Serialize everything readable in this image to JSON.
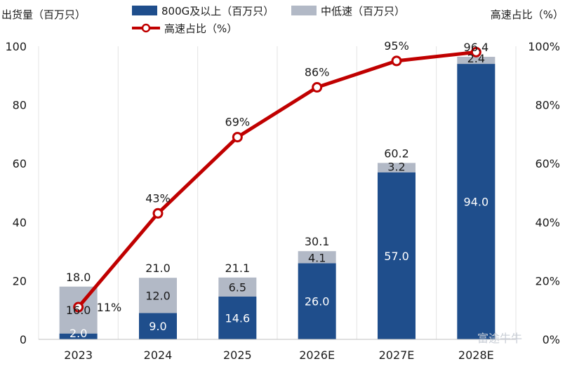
{
  "chart_data": {
    "type": "bar",
    "stacked": true,
    "categories": [
      "2023",
      "2024",
      "2025",
      "2026E",
      "2027E",
      "2028E"
    ],
    "series": [
      {
        "name": "800G及以上（百万只）",
        "type": "bar",
        "axis": "left",
        "color": "#1f4e8c",
        "values": [
          2.0,
          9.0,
          14.6,
          26.0,
          57.0,
          94.0
        ],
        "labels": [
          "2.0",
          "9.0",
          "14.6",
          "26.0",
          "57.0",
          "94.0"
        ]
      },
      {
        "name": "中低速（百万只）",
        "type": "bar",
        "axis": "left",
        "color": "#b2b9c6",
        "values": [
          16.0,
          12.0,
          6.5,
          4.1,
          3.2,
          2.4
        ],
        "labels": [
          "16.0",
          "12.0",
          "6.5",
          "4.1",
          "3.2",
          "2.4"
        ]
      },
      {
        "name": "高速占比（%）",
        "type": "line",
        "axis": "right",
        "color": "#c00000",
        "values": [
          11,
          43,
          69,
          86,
          95,
          98
        ],
        "labels": [
          "11%",
          "43%",
          "69%",
          "86%",
          "95%",
          ""
        ]
      }
    ],
    "totals": [
      18.0,
      21.0,
      21.1,
      30.1,
      60.2,
      96.4
    ],
    "total_labels": [
      "18.0",
      "21.0",
      "21.1",
      "30.1",
      "60.2",
      "96.4"
    ],
    "ylabel": "出货量（百万只）",
    "y2label": "高速占比（%）",
    "ylim": [
      0,
      100
    ],
    "yticks": [
      "0",
      "20",
      "40",
      "60",
      "80",
      "100"
    ],
    "y2lim": [
      0,
      100
    ],
    "y2ticks": [
      "0%",
      "20%",
      "40%",
      "60%",
      "80%",
      "100%"
    ],
    "grid": "vertical",
    "legend": "top-center"
  },
  "watermark": "富途牛牛"
}
